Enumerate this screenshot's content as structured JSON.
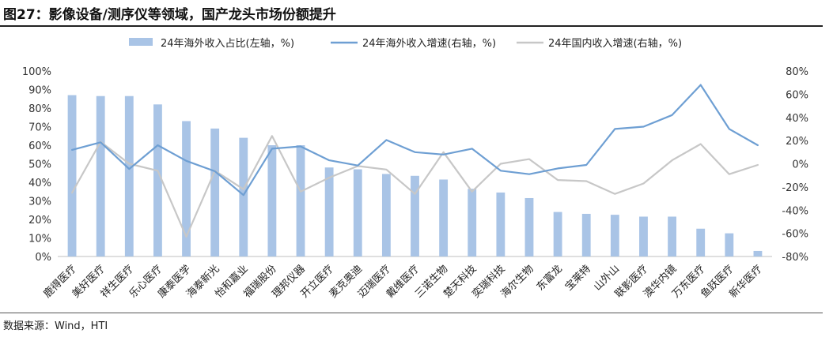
{
  "title": "图27：影像设备/测序仪等领域，国产龙头市场份额提升",
  "source": "数据来源：Wind，HTI",
  "chart_data": {
    "type": "bar",
    "title": "图27：影像设备/测序仪等领域，国产龙头市场份额提升",
    "categories": [
      "鹿得医疗",
      "美好医疗",
      "祥生医疗",
      "乐心医疗",
      "康泰医学",
      "海泰新光",
      "怡和嘉业",
      "福瑞股份",
      "理邦仪器",
      "开立医疗",
      "麦克奥迪",
      "迈瑞医疗",
      "戴维医疗",
      "三诺生物",
      "楚天科技",
      "奕瑞科技",
      "海尔生物",
      "东富龙",
      "宝莱特",
      "山外山",
      "联影医疗",
      "澳华内镜",
      "万东医疗",
      "鱼跃医疗",
      "新华医疗"
    ],
    "series": [
      {
        "name": "24年海外收入占比(左轴，%)",
        "kind": "bar",
        "axis": "left",
        "color": "#a9c4e6",
        "values": [
          87,
          86.5,
          86.5,
          82,
          73,
          69,
          64,
          60,
          60,
          48,
          47,
          44.5,
          43.5,
          41.5,
          36.5,
          34.5,
          31.5,
          24,
          23,
          22.5,
          21.5,
          21.5,
          15,
          12.5,
          3
        ]
      },
      {
        "name": "24年海外收入增速(右轴，%)",
        "kind": "line",
        "axis": "right",
        "color": "#6e9fd3",
        "values": [
          12,
          18.5,
          -4.5,
          16,
          2.5,
          -6.5,
          -27,
          13,
          15,
          3,
          -1.5,
          20.5,
          10,
          8,
          13,
          -6,
          -9,
          -4,
          -1,
          30,
          32,
          42,
          68,
          30,
          16
        ]
      },
      {
        "name": "24年国内收入增速(右轴，%)",
        "kind": "line",
        "axis": "right",
        "color": "#c7c7c7",
        "values": [
          -25,
          19,
          0,
          -6,
          -63,
          -6,
          -22,
          24,
          -24,
          -12,
          -2,
          -5,
          -26,
          10,
          -24,
          0,
          4,
          -14,
          -15,
          -26,
          -17,
          3,
          17,
          -9,
          -1
        ]
      }
    ],
    "left_axis": {
      "min": 0,
      "max": 100,
      "step": 10,
      "format": "percent"
    },
    "right_axis": {
      "min": -80,
      "max": 80,
      "step": 20,
      "format": "percent"
    },
    "legend_position": "top",
    "grid": false
  }
}
